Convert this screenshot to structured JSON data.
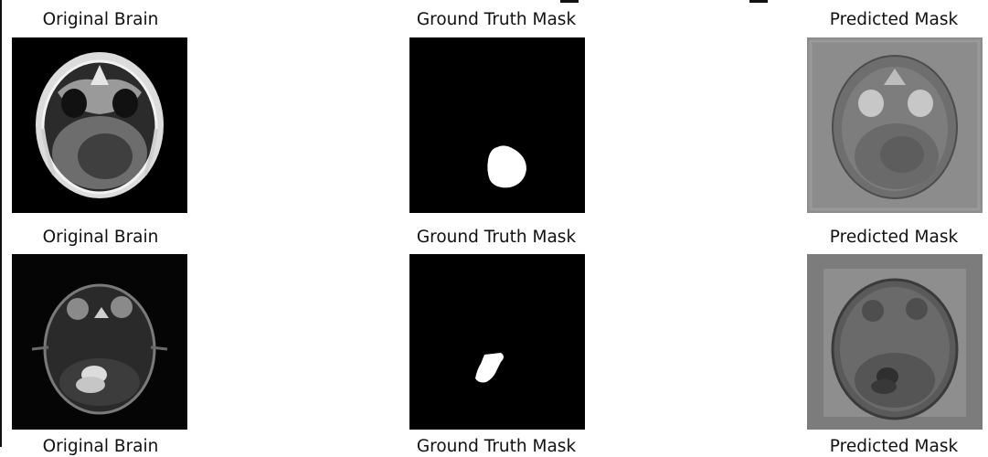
{
  "figure": {
    "rows": [
      {
        "original_title": "Original Brain",
        "ground_truth_title": "Ground Truth Mask",
        "predicted_title": "Predicted Mask"
      },
      {
        "original_title": "Original Brain",
        "ground_truth_title": "Ground Truth Mask",
        "predicted_title": "Predicted Mask"
      }
    ],
    "cut_off_titles": [
      "Original Brain",
      "Ground Truth Mask",
      "Predicted Mask"
    ]
  },
  "colors": {
    "background": "#ffffff",
    "mask_background": "#000000",
    "mask_foreground": "#ffffff",
    "predicted_background": "#8a8a8a"
  }
}
